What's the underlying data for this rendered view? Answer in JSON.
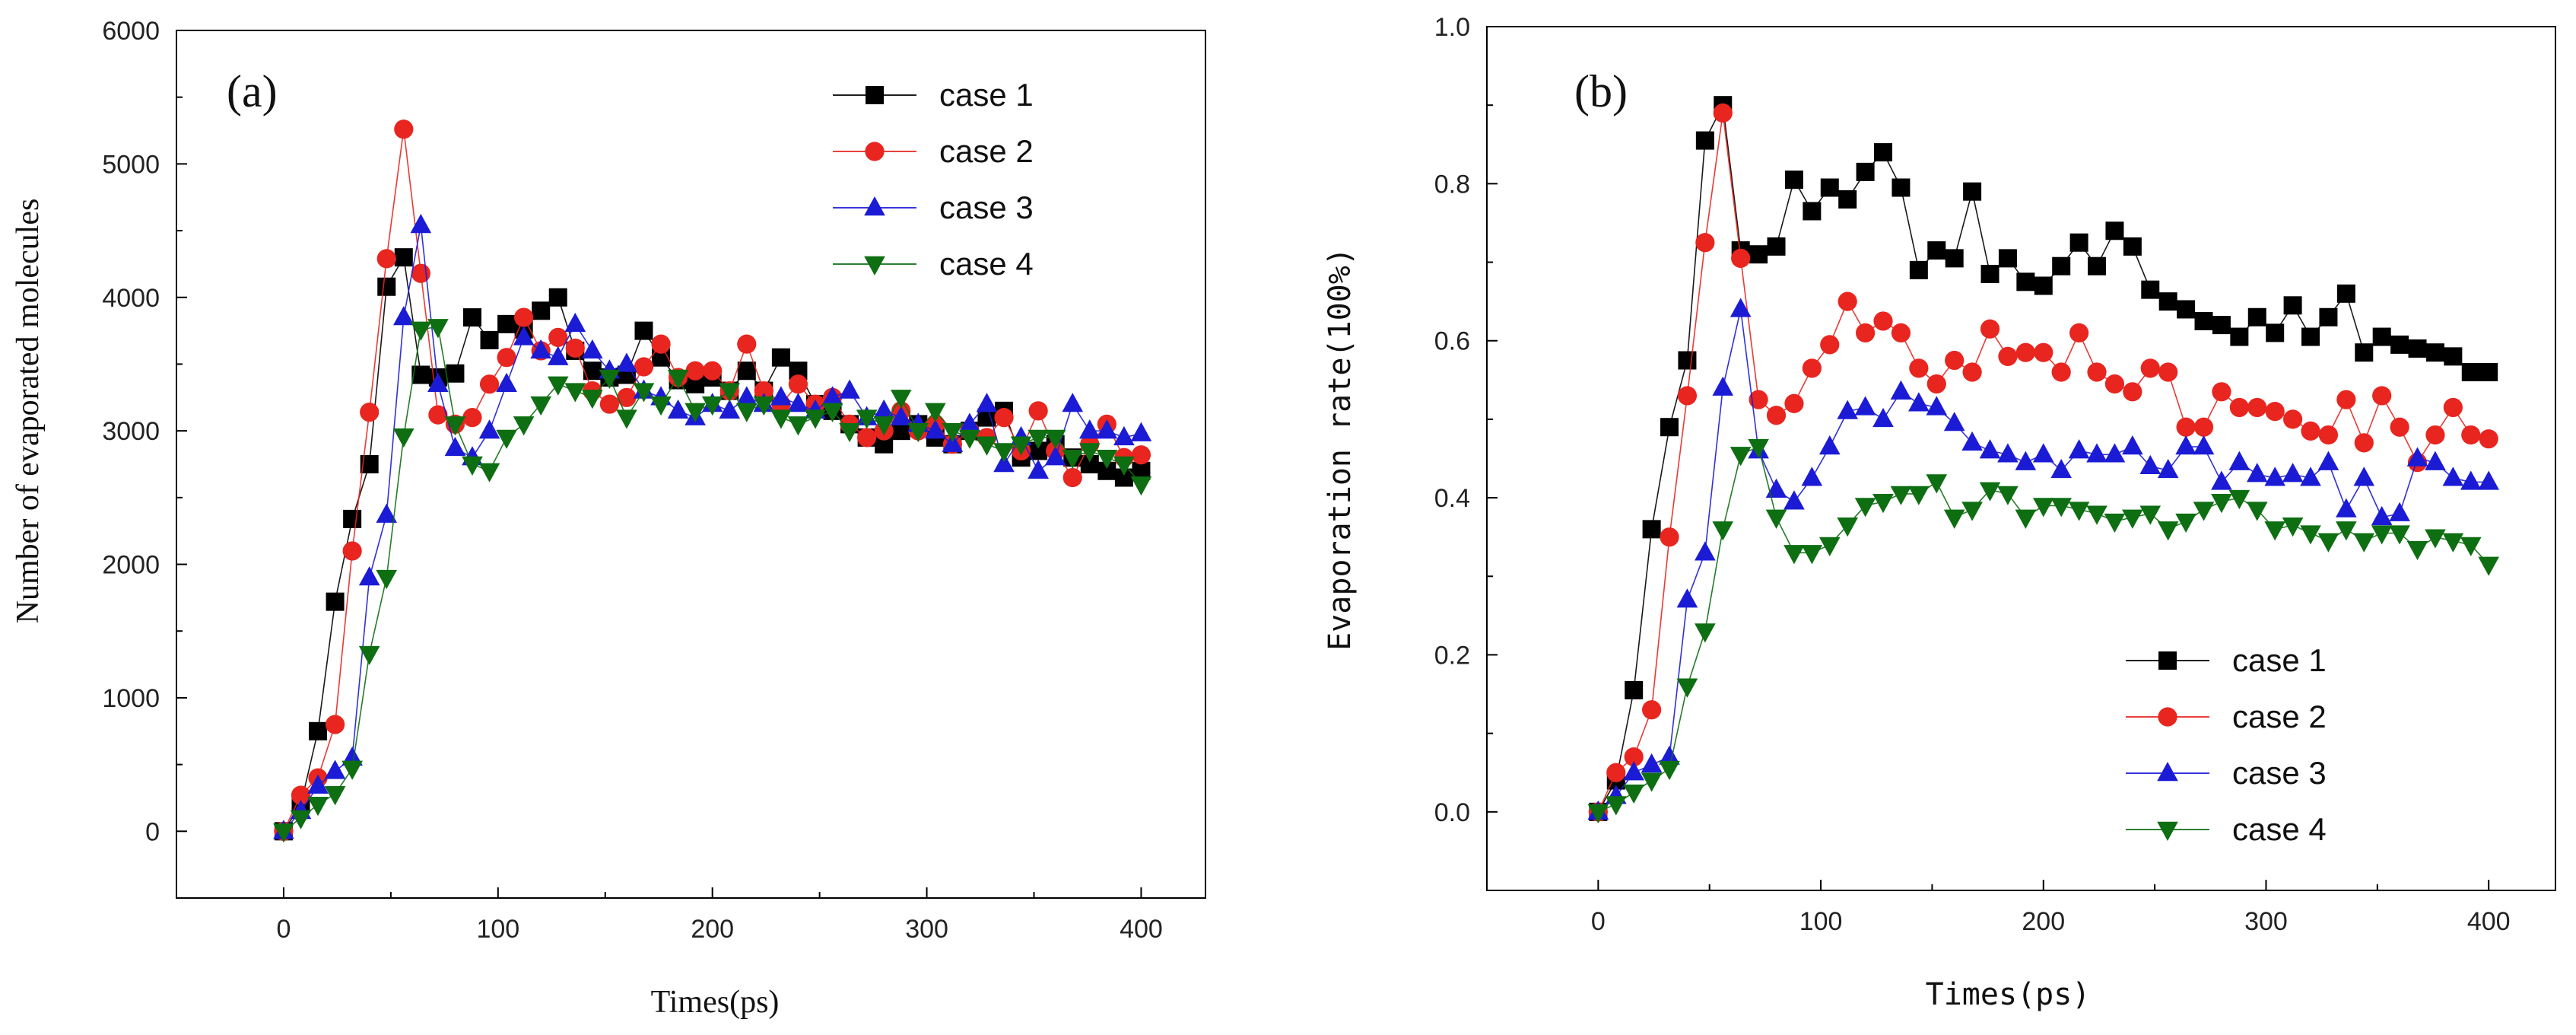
{
  "chart_data": [
    {
      "type": "line",
      "panel_label": "(a)",
      "title": "",
      "xlabel": "Times(ps)",
      "ylabel": "Number of evaporated molecules",
      "xlim": [
        -50,
        430
      ],
      "ylim": [
        -500,
        6000
      ],
      "xticks": [
        0,
        100,
        200,
        300,
        400
      ],
      "yticks": [
        0,
        1000,
        2000,
        3000,
        4000,
        5000,
        6000
      ],
      "legend": "top-right",
      "series": [
        {
          "name": "case 1",
          "color": "#000000",
          "marker": "square",
          "x": [
            0,
            8,
            16,
            24,
            32,
            40,
            48,
            56,
            64,
            72,
            80,
            88,
            96,
            104,
            112,
            120,
            128,
            136,
            144,
            152,
            160,
            168,
            176,
            184,
            192,
            200,
            208,
            216,
            224,
            232,
            240,
            248,
            256,
            264,
            272,
            280,
            288,
            296,
            304,
            312,
            320,
            328,
            336,
            344,
            352,
            360,
            368,
            376,
            384,
            392,
            400
          ],
          "y": [
            0,
            200,
            750,
            1720,
            2340,
            2750,
            4080,
            4300,
            3420,
            3400,
            3430,
            3850,
            3680,
            3800,
            3760,
            3900,
            4000,
            3600,
            3450,
            3400,
            3420,
            3750,
            3550,
            3380,
            3350,
            3400,
            3300,
            3450,
            3300,
            3550,
            3450,
            3200,
            3150,
            3050,
            2950,
            2900,
            3000,
            3050,
            2950,
            2900,
            3000,
            3100,
            3150,
            2800,
            2850,
            2900,
            2800,
            2750,
            2700,
            2650,
            2700
          ]
        },
        {
          "name": "case 2",
          "color": "#e8251f",
          "marker": "circle",
          "x": [
            0,
            8,
            16,
            24,
            32,
            40,
            48,
            56,
            64,
            72,
            80,
            88,
            96,
            104,
            112,
            120,
            128,
            136,
            144,
            152,
            160,
            168,
            176,
            184,
            192,
            200,
            208,
            216,
            224,
            232,
            240,
            248,
            256,
            264,
            272,
            280,
            288,
            296,
            304,
            312,
            320,
            328,
            336,
            344,
            352,
            360,
            368,
            376,
            384,
            392,
            400
          ],
          "y": [
            0,
            270,
            400,
            800,
            2100,
            3140,
            4290,
            5260,
            4180,
            3120,
            3050,
            3100,
            3350,
            3550,
            3850,
            3600,
            3700,
            3620,
            3300,
            3200,
            3250,
            3480,
            3650,
            3400,
            3450,
            3450,
            3300,
            3650,
            3300,
            3200,
            3350,
            3200,
            3250,
            3050,
            2950,
            3000,
            3150,
            3000,
            3050,
            2900,
            3000,
            2950,
            3100,
            2850,
            3150,
            2850,
            2650,
            2900,
            3050,
            2800,
            2820
          ]
        },
        {
          "name": "case 3",
          "color": "#1b1bd6",
          "marker": "triangle-up",
          "x": [
            0,
            8,
            16,
            24,
            32,
            40,
            48,
            56,
            64,
            72,
            80,
            88,
            96,
            104,
            112,
            120,
            128,
            136,
            144,
            152,
            160,
            168,
            176,
            184,
            192,
            200,
            208,
            216,
            224,
            232,
            240,
            248,
            256,
            264,
            272,
            280,
            288,
            296,
            304,
            312,
            320,
            328,
            336,
            344,
            352,
            360,
            368,
            376,
            384,
            392,
            400
          ],
          "y": [
            0,
            150,
            340,
            450,
            550,
            1900,
            2370,
            3850,
            4540,
            3350,
            2870,
            2800,
            3000,
            3350,
            3700,
            3600,
            3550,
            3800,
            3600,
            3450,
            3500,
            3300,
            3250,
            3150,
            3100,
            3200,
            3150,
            3250,
            3200,
            3250,
            3200,
            3150,
            3250,
            3300,
            3100,
            3150,
            3100,
            3050,
            3000,
            2900,
            3050,
            3200,
            2750,
            2950,
            2700,
            2800,
            3200,
            3000,
            3000,
            2950,
            2980
          ]
        },
        {
          "name": "case 4",
          "color": "#0e6e12",
          "marker": "triangle-down",
          "x": [
            0,
            8,
            16,
            24,
            32,
            40,
            48,
            56,
            64,
            72,
            80,
            88,
            96,
            104,
            112,
            120,
            128,
            136,
            144,
            152,
            160,
            168,
            176,
            184,
            192,
            200,
            208,
            216,
            224,
            232,
            240,
            248,
            256,
            264,
            272,
            280,
            288,
            296,
            304,
            312,
            320,
            328,
            336,
            344,
            352,
            360,
            368,
            376,
            384,
            392,
            400
          ],
          "y": [
            0,
            100,
            200,
            280,
            470,
            1330,
            1900,
            2960,
            3760,
            3780,
            3050,
            2750,
            2700,
            2950,
            3050,
            3200,
            3350,
            3300,
            3250,
            3400,
            3100,
            3300,
            3200,
            3400,
            3150,
            3200,
            3300,
            3150,
            3200,
            3100,
            3050,
            3100,
            3150,
            3000,
            3100,
            3050,
            3250,
            3000,
            3150,
            3000,
            2950,
            2900,
            2850,
            2900,
            2950,
            2950,
            2800,
            2850,
            2800,
            2750,
            2600
          ]
        }
      ]
    },
    {
      "type": "line",
      "panel_label": "(b)",
      "title": "",
      "xlabel": "Times(ps)",
      "ylabel": "Evaporation rate(100%)",
      "xlim": [
        -50,
        430
      ],
      "ylim": [
        -0.1,
        1.0
      ],
      "xticks": [
        0,
        100,
        200,
        300,
        400
      ],
      "yticks": [
        "0.0",
        "0.2",
        "0.4",
        "0.6",
        "0.8",
        "1.0"
      ],
      "legend": "bottom-right",
      "series": [
        {
          "name": "case 1",
          "color": "#000000",
          "marker": "square",
          "x": [
            0,
            8,
            16,
            24,
            32,
            40,
            48,
            56,
            64,
            72,
            80,
            88,
            96,
            104,
            112,
            120,
            128,
            136,
            144,
            152,
            160,
            168,
            176,
            184,
            192,
            200,
            208,
            216,
            224,
            232,
            240,
            248,
            256,
            264,
            272,
            280,
            288,
            296,
            304,
            312,
            320,
            328,
            336,
            344,
            352,
            360,
            368,
            376,
            384,
            392,
            400
          ],
          "y": [
            0,
            0.04,
            0.155,
            0.36,
            0.49,
            0.575,
            0.855,
            0.9,
            0.715,
            0.71,
            0.72,
            0.805,
            0.765,
            0.795,
            0.78,
            0.815,
            0.84,
            0.795,
            0.69,
            0.715,
            0.705,
            0.79,
            0.685,
            0.705,
            0.675,
            0.67,
            0.695,
            0.725,
            0.695,
            0.74,
            0.72,
            0.665,
            0.65,
            0.64,
            0.625,
            0.62,
            0.605,
            0.63,
            0.61,
            0.645,
            0.605,
            0.63,
            0.66,
            0.585,
            0.605,
            0.595,
            0.59,
            0.585,
            0.58,
            0.56,
            0.56
          ]
        },
        {
          "name": "case 2",
          "color": "#e8251f",
          "marker": "circle",
          "x": [
            0,
            8,
            16,
            24,
            32,
            40,
            48,
            56,
            64,
            72,
            80,
            88,
            96,
            104,
            112,
            120,
            128,
            136,
            144,
            152,
            160,
            168,
            176,
            184,
            192,
            200,
            208,
            216,
            224,
            232,
            240,
            248,
            256,
            264,
            272,
            280,
            288,
            296,
            304,
            312,
            320,
            328,
            336,
            344,
            352,
            360,
            368,
            376,
            384,
            392,
            400
          ],
          "y": [
            0,
            0.05,
            0.07,
            0.13,
            0.35,
            0.53,
            0.725,
            0.89,
            0.705,
            0.525,
            0.505,
            0.52,
            0.565,
            0.595,
            0.65,
            0.61,
            0.625,
            0.61,
            0.565,
            0.545,
            0.575,
            0.56,
            0.615,
            0.58,
            0.585,
            0.585,
            0.56,
            0.61,
            0.56,
            0.545,
            0.535,
            0.565,
            0.56,
            0.49,
            0.49,
            0.535,
            0.515,
            0.515,
            0.51,
            0.5,
            0.485,
            0.48,
            0.525,
            0.47,
            0.53,
            0.49,
            0.445,
            0.48,
            0.515,
            0.48,
            0.475
          ]
        },
        {
          "name": "case 3",
          "color": "#1b1bd6",
          "marker": "triangle-up",
          "x": [
            0,
            8,
            16,
            24,
            32,
            40,
            48,
            56,
            64,
            72,
            80,
            88,
            96,
            104,
            112,
            120,
            128,
            136,
            144,
            152,
            160,
            168,
            176,
            184,
            192,
            200,
            208,
            216,
            224,
            232,
            240,
            248,
            256,
            264,
            272,
            280,
            288,
            296,
            304,
            312,
            320,
            328,
            336,
            344,
            352,
            360,
            368,
            376,
            384,
            392,
            400
          ],
          "y": [
            0,
            0.02,
            0.05,
            0.06,
            0.07,
            0.27,
            0.33,
            0.54,
            0.64,
            0.46,
            0.41,
            0.395,
            0.425,
            0.465,
            0.51,
            0.515,
            0.5,
            0.535,
            0.52,
            0.515,
            0.495,
            0.47,
            0.46,
            0.455,
            0.445,
            0.455,
            0.435,
            0.46,
            0.455,
            0.455,
            0.465,
            0.44,
            0.435,
            0.465,
            0.465,
            0.42,
            0.445,
            0.43,
            0.425,
            0.43,
            0.425,
            0.445,
            0.385,
            0.425,
            0.375,
            0.38,
            0.45,
            0.445,
            0.425,
            0.42,
            0.42
          ]
        },
        {
          "name": "case 4",
          "color": "#0e6e12",
          "marker": "triangle-down",
          "x": [
            0,
            8,
            16,
            24,
            32,
            40,
            48,
            56,
            64,
            72,
            80,
            88,
            96,
            104,
            112,
            120,
            128,
            136,
            144,
            152,
            160,
            168,
            176,
            184,
            192,
            200,
            208,
            216,
            224,
            232,
            240,
            248,
            256,
            264,
            272,
            280,
            288,
            296,
            304,
            312,
            320,
            328,
            336,
            344,
            352,
            360,
            368,
            376,
            384,
            392,
            400
          ],
          "y": [
            0,
            0.01,
            0.025,
            0.04,
            0.055,
            0.16,
            0.23,
            0.36,
            0.455,
            0.465,
            0.375,
            0.33,
            0.33,
            0.34,
            0.365,
            0.39,
            0.395,
            0.405,
            0.405,
            0.42,
            0.375,
            0.385,
            0.41,
            0.405,
            0.375,
            0.39,
            0.39,
            0.385,
            0.38,
            0.37,
            0.375,
            0.38,
            0.36,
            0.37,
            0.385,
            0.395,
            0.4,
            0.385,
            0.36,
            0.365,
            0.355,
            0.345,
            0.36,
            0.345,
            0.355,
            0.355,
            0.335,
            0.35,
            0.345,
            0.34,
            0.315
          ]
        }
      ]
    }
  ]
}
